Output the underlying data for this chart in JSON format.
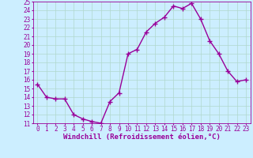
{
  "x": [
    0,
    1,
    2,
    3,
    4,
    5,
    6,
    7,
    8,
    9,
    10,
    11,
    12,
    13,
    14,
    15,
    16,
    17,
    18,
    19,
    20,
    21,
    22,
    23
  ],
  "y": [
    15.5,
    14.0,
    13.8,
    13.8,
    12.0,
    11.5,
    11.2,
    11.0,
    13.5,
    14.5,
    19.0,
    19.5,
    21.5,
    22.5,
    23.2,
    24.5,
    24.2,
    24.8,
    23.0,
    20.5,
    19.0,
    17.0,
    15.8,
    16.0
  ],
  "xlabel": "Windchill (Refroidissement éolien,°C)",
  "xlim": [
    -0.5,
    23.5
  ],
  "ylim": [
    11,
    25
  ],
  "yticks": [
    11,
    12,
    13,
    14,
    15,
    16,
    17,
    18,
    19,
    20,
    21,
    22,
    23,
    24,
    25
  ],
  "xticks": [
    0,
    1,
    2,
    3,
    4,
    5,
    6,
    7,
    8,
    9,
    10,
    11,
    12,
    13,
    14,
    15,
    16,
    17,
    18,
    19,
    20,
    21,
    22,
    23
  ],
  "line_color": "#990099",
  "marker": "+",
  "bg_color": "#cceeff",
  "grid_color": "#b0d8cc",
  "tick_color": "#990099",
  "label_color": "#990099",
  "font_size_tick": 5.5,
  "font_size_label": 6.5,
  "line_width": 1.0,
  "marker_size": 4,
  "marker_edge_width": 1.0
}
